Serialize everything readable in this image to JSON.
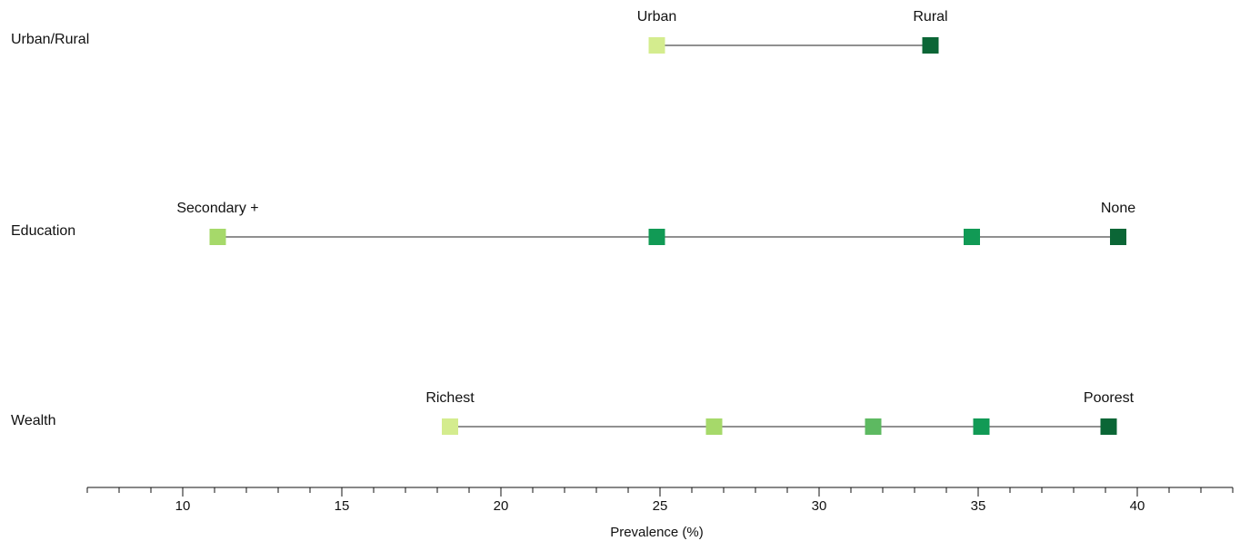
{
  "chart_data": {
    "type": "dot-range",
    "xlabel": "Prevalence (%)",
    "xlim": [
      7,
      43
    ],
    "major_ticks": [
      10,
      15,
      20,
      25,
      30,
      35,
      40
    ],
    "minor_tick_step": 1,
    "grid": false,
    "rows": [
      {
        "label": "Urban/Rural",
        "points": [
          {
            "label": "Urban",
            "value": 24.9,
            "color": "#d4ec8e"
          },
          {
            "label": "Rural",
            "value": 33.5,
            "color": "#0b6636"
          }
        ]
      },
      {
        "label": "Education",
        "points": [
          {
            "label": "Secondary +",
            "value": 11.1,
            "color": "#a6d96a"
          },
          {
            "label": "",
            "value": 24.9,
            "color": "#119a55"
          },
          {
            "label": "",
            "value": 34.8,
            "color": "#119a55"
          },
          {
            "label": "None",
            "value": 39.4,
            "color": "#0b6636"
          }
        ]
      },
      {
        "label": "Wealth",
        "points": [
          {
            "label": "Richest",
            "value": 18.4,
            "color": "#d4ec8e"
          },
          {
            "label": "",
            "value": 26.7,
            "color": "#a6d96a"
          },
          {
            "label": "",
            "value": 31.7,
            "color": "#5db961"
          },
          {
            "label": "",
            "value": 35.1,
            "color": "#119a55"
          },
          {
            "label": "Poorest",
            "value": 39.1,
            "color": "#0b6636"
          }
        ]
      }
    ]
  }
}
